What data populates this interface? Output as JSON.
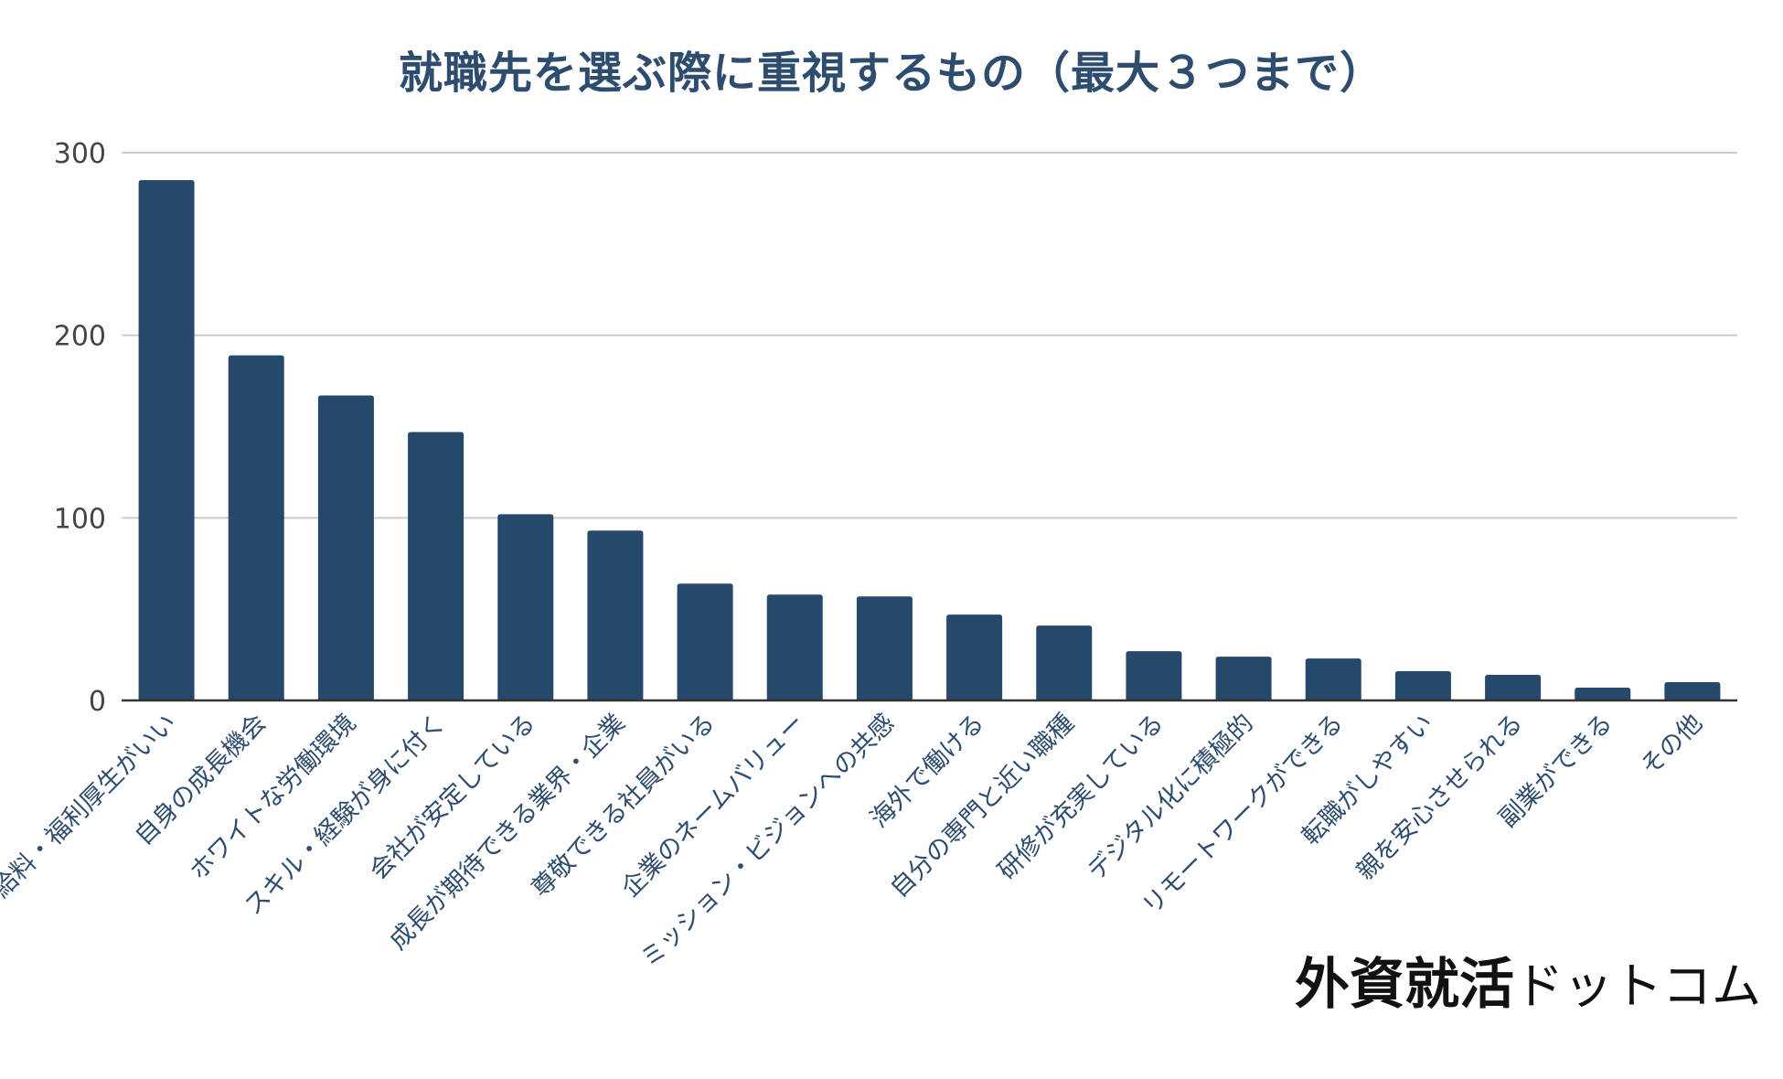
{
  "chart_data": {
    "type": "bar",
    "title": "就職先を選ぶ際に重視するもの（最大３つまで）",
    "xlabel": "",
    "ylabel": "",
    "ylim": [
      0,
      300
    ],
    "yticks": [
      0,
      100,
      200,
      300
    ],
    "grid": true,
    "legend": "none",
    "bar_color": "#25486c",
    "categories": [
      "給料・福利厚生がいい",
      "自身の成長機会",
      "ホワイトな労働環境",
      "スキル・経験が身に付く",
      "会社が安定している",
      "成長が期待できる業界・企業",
      "尊敬できる社員がいる",
      "企業のネームバリュー",
      "ミッション・ビジョンへの共感",
      "海外で働ける",
      "自分の専門と近い職種",
      "研修が充実している",
      "デジタル化に積極的",
      "リモートワークができる",
      "転職がしやすい",
      "親を安心させられる",
      "副業ができる",
      "その他"
    ],
    "values": [
      285,
      189,
      167,
      147,
      102,
      93,
      64,
      58,
      57,
      47,
      41,
      27,
      24,
      23,
      16,
      14,
      7,
      10
    ]
  },
  "watermark": {
    "strong": "外資就活",
    "light": "ドットコム"
  }
}
